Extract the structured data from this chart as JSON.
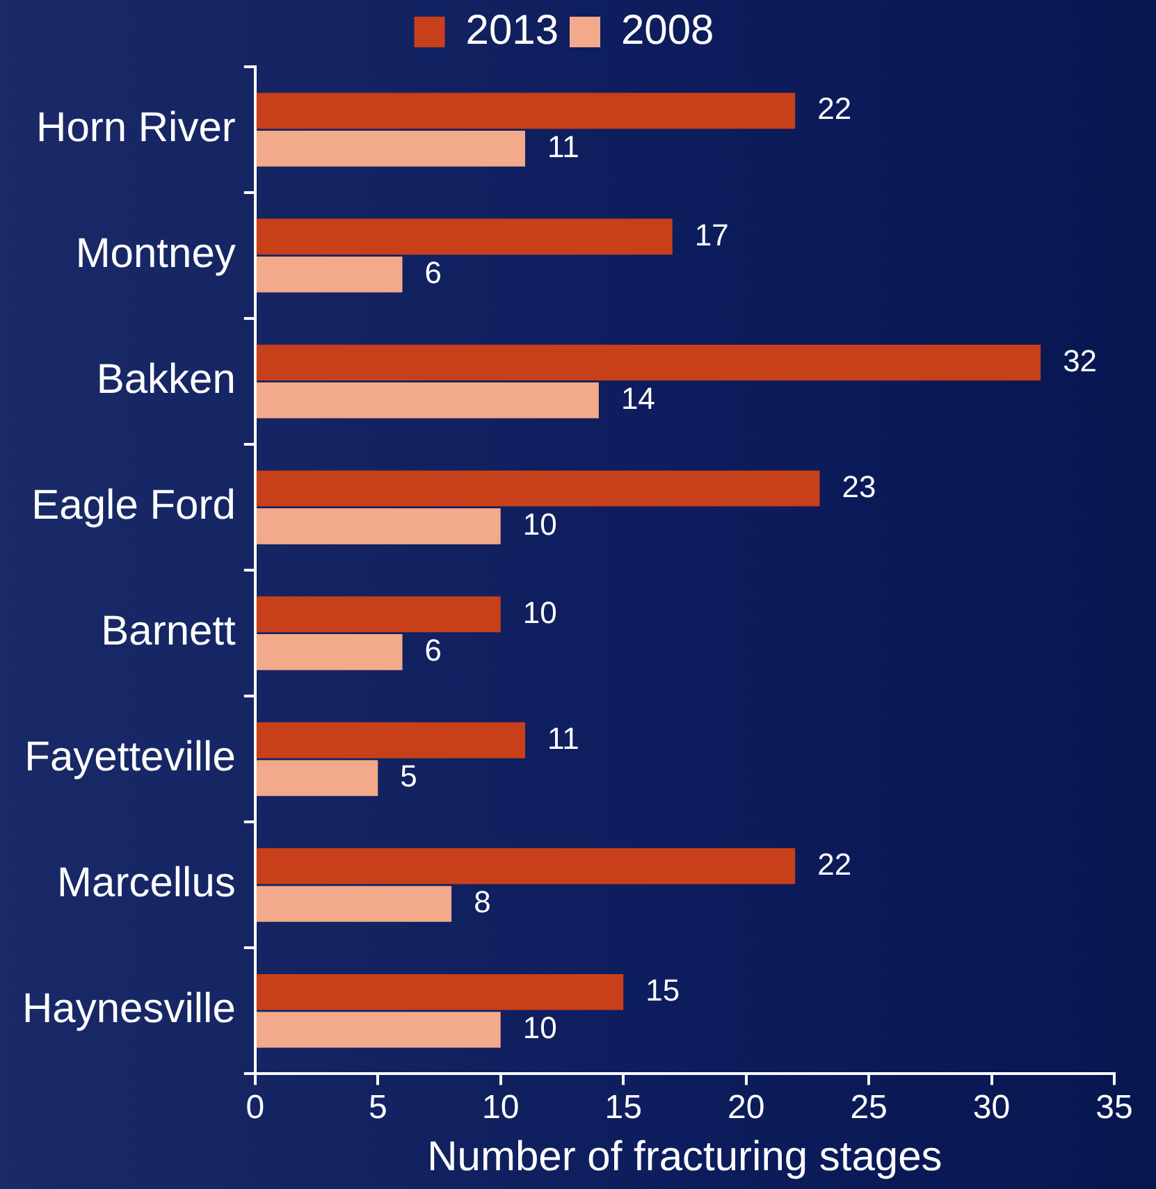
{
  "chart_data": {
    "type": "bar",
    "orientation": "horizontal",
    "xlabel": "Number of fracturing stages",
    "categories": [
      "Horn River",
      "Montney",
      "Bakken",
      "Eagle Ford",
      "Barnett",
      "Fayetteville",
      "Marcellus",
      "Haynesville"
    ],
    "series": [
      {
        "name": "2013",
        "color": "#c8401a",
        "values": [
          22,
          17,
          32,
          23,
          10,
          11,
          22,
          15
        ]
      },
      {
        "name": "2008",
        "color": "#f2aa8a",
        "values": [
          11,
          6,
          14,
          10,
          6,
          5,
          8,
          10
        ]
      }
    ],
    "xlim": [
      0,
      35
    ],
    "xticks": [
      0,
      5,
      10,
      15,
      20,
      25,
      30,
      35
    ],
    "grid": false,
    "legend": "top",
    "data_labels": true
  }
}
